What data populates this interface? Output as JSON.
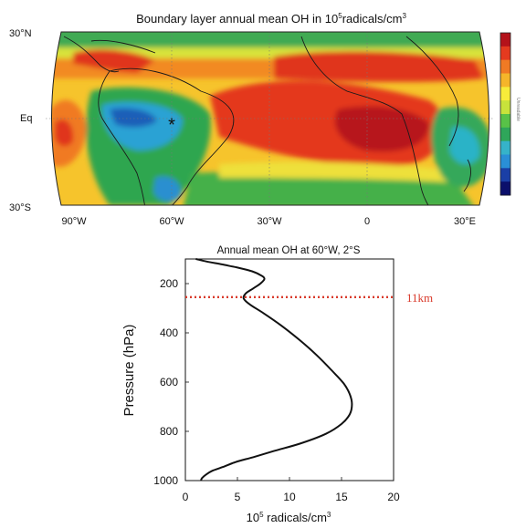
{
  "chart_data": [
    {
      "type": "heatmap",
      "title": {
        "prefix": "Boundary layer annual mean OH in 10",
        "superscript": "5",
        "suffix": "radicals/cm",
        "suffix_superscript": "3"
      },
      "y_ticks": [
        "30°N",
        "Eq",
        "30°S"
      ],
      "x_ticks": [
        "90°W",
        "60°W",
        "30°W",
        "0",
        "30°E"
      ],
      "grid": true,
      "marker": {
        "symbol": "*",
        "lon": -60,
        "lat": -2
      },
      "colorbar": {
        "placement": "right",
        "colors": [
          "#0b0f6b",
          "#1a3fa6",
          "#2a8fd6",
          "#36b3c9",
          "#2fa65a",
          "#58c248",
          "#c8e33b",
          "#f7ec3a",
          "#f5b52a",
          "#f07a24",
          "#e43a1f",
          "#b4121a"
        ]
      },
      "legend_labels_partial": "Unreadable"
    },
    {
      "type": "line",
      "title": "Annual mean OH at 60°W, 2°S",
      "xlabel": {
        "prefix": "10",
        "superscript": "5",
        "rest": " radicals/cm",
        "rest_superscript": "3"
      },
      "ylabel": "Pressure (hPa)",
      "xlim": [
        0,
        20
      ],
      "ylim": [
        1000,
        100
      ],
      "x_ticks": [
        "0",
        "5",
        "10",
        "15",
        "20"
      ],
      "y_ticks": [
        "200",
        "400",
        "600",
        "800",
        "1000"
      ],
      "x_tick_values": [
        0,
        5,
        10,
        15,
        20
      ],
      "y_tick_values": [
        200,
        400,
        600,
        800,
        1000
      ],
      "series": [
        {
          "color": "#111111",
          "x": [
            1.0,
            2.0,
            3.5,
            5.0,
            6.4,
            7.2,
            7.6,
            7.2,
            6.5,
            5.8,
            5.6,
            6.2,
            7.5,
            9.2,
            11.0,
            12.6,
            14.0,
            15.2,
            15.8,
            16.0,
            15.8,
            15.0,
            13.5,
            11.0,
            8.5,
            6.5,
            4.8,
            3.6,
            2.6,
            2.0,
            1.6,
            1.5
          ],
          "y": [
            100,
            110,
            122,
            135,
            150,
            165,
            180,
            200,
            220,
            240,
            260,
            285,
            320,
            370,
            430,
            490,
            550,
            605,
            650,
            690,
            730,
            770,
            810,
            850,
            880,
            905,
            925,
            945,
            960,
            975,
            990,
            1000
          ]
        }
      ],
      "annotations": [
        {
          "text": "11km",
          "pressure": 255,
          "color": "#d93a2b",
          "style": "dotted"
        }
      ]
    }
  ]
}
